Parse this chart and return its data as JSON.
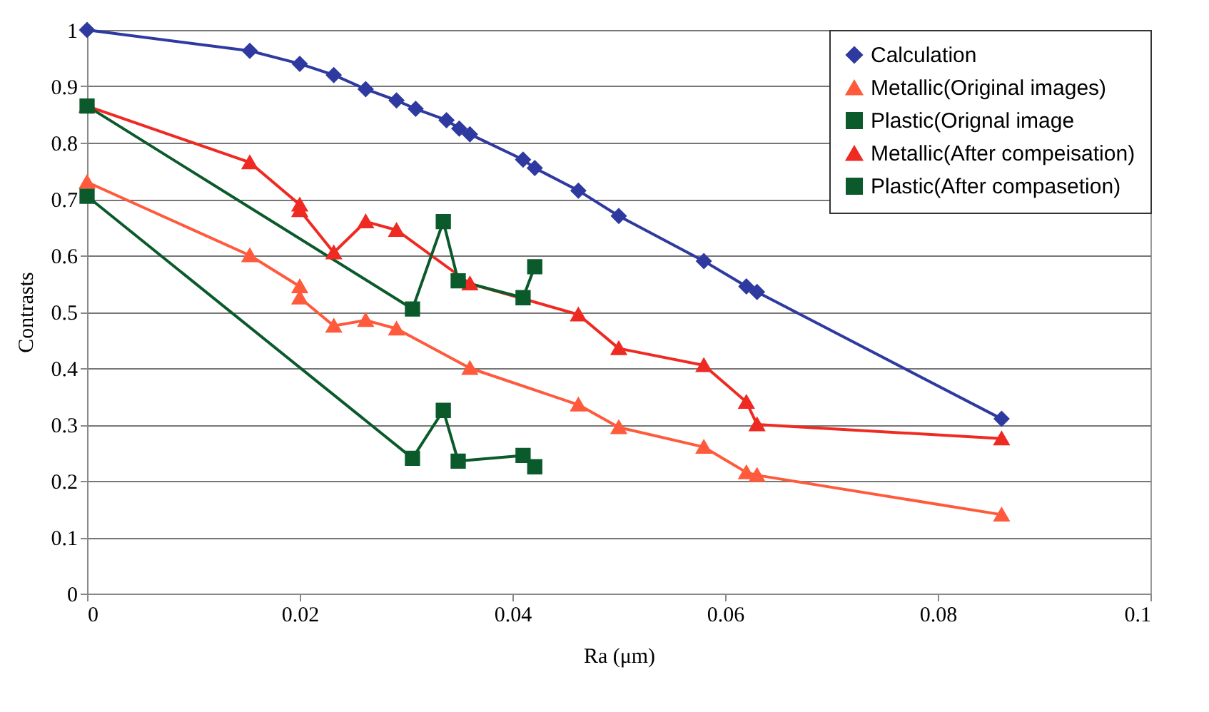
{
  "chart_data": {
    "type": "line",
    "xlabel": "Ra (μm)",
    "ylabel": "Contrasts",
    "xlim": [
      0,
      0.1
    ],
    "xticks": [
      0,
      0.02,
      0.04,
      0.06,
      0.08,
      0.1
    ],
    "ylim": [
      0,
      1
    ],
    "yticks": [
      0,
      0.1,
      0.2,
      0.3,
      0.4,
      0.5,
      0.6,
      0.7,
      0.8,
      0.9,
      1
    ],
    "grid": "y",
    "legend": "top right",
    "line_style": "solid",
    "series": [
      {
        "name": "Calculation",
        "color": "#2e3a9f",
        "marker": "diamond",
        "x": [
          0,
          0.0153,
          0.02,
          0.0232,
          0.0262,
          0.0291,
          0.0309,
          0.0338,
          0.035,
          0.036,
          0.041,
          0.0421,
          0.0462,
          0.05,
          0.058,
          0.062,
          0.063,
          0.086
        ],
        "values": [
          1.0,
          0.963,
          0.94,
          0.92,
          0.895,
          0.875,
          0.86,
          0.84,
          0.825,
          0.815,
          0.77,
          0.755,
          0.715,
          0.67,
          0.59,
          0.545,
          0.535,
          0.31
        ]
      },
      {
        "name": "Metallic(Original images)",
        "color": "#ff5a3c",
        "marker": "triangle",
        "x": [
          0,
          0.0153,
          0.02,
          0.02,
          0.0232,
          0.0262,
          0.0291,
          0.036,
          0.0462,
          0.05,
          0.058,
          0.062,
          0.063,
          0.086
        ],
        "values": [
          0.73,
          0.6,
          0.545,
          0.525,
          0.475,
          0.485,
          0.47,
          0.4,
          0.335,
          0.295,
          0.26,
          0.215,
          0.21,
          0.14
        ]
      },
      {
        "name": "Plastic(Orignal image",
        "color": "#0b5a2b",
        "marker": "square",
        "x": [
          0,
          0.0306,
          0.0335,
          0.0349,
          0.041,
          0.0421
        ],
        "values": [
          0.705,
          0.24,
          0.325,
          0.235,
          0.245,
          0.225
        ]
      },
      {
        "name": "Metallic(After compeisation)",
        "color": "#ee2a22",
        "marker": "triangle",
        "x": [
          0,
          0.0153,
          0.02,
          0.02,
          0.0232,
          0.0262,
          0.0291,
          0.036,
          0.0462,
          0.05,
          0.058,
          0.062,
          0.063,
          0.086
        ],
        "values": [
          0.865,
          0.765,
          0.69,
          0.68,
          0.605,
          0.66,
          0.645,
          0.55,
          0.495,
          0.435,
          0.405,
          0.34,
          0.3,
          0.275
        ]
      },
      {
        "name": "Plastic(After compasetion)",
        "color": "#0b5a2b",
        "marker": "square",
        "x": [
          0,
          0.0306,
          0.0335,
          0.0349,
          0.041,
          0.0421
        ],
        "values": [
          0.865,
          0.505,
          0.66,
          0.555,
          0.525,
          0.58
        ]
      }
    ]
  }
}
